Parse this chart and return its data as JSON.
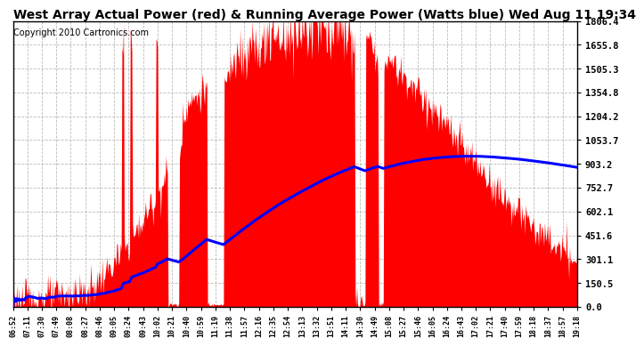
{
  "title": "West Array Actual Power (red) & Running Average Power (Watts blue) Wed Aug 11 19:34",
  "copyright": "Copyright 2010 Cartronics.com",
  "ymax": 1806.4,
  "ymin": 0.0,
  "yticks": [
    0.0,
    150.5,
    301.1,
    451.6,
    602.1,
    752.7,
    903.2,
    1053.7,
    1204.2,
    1354.8,
    1505.3,
    1655.8,
    1806.4
  ],
  "ytick_labels": [
    "0.0",
    "150.5",
    "301.1",
    "451.6",
    "602.1",
    "752.7",
    "903.2",
    "1053.7",
    "1204.2",
    "1354.8",
    "1505.3",
    "1655.8",
    "1806.4"
  ],
  "xtick_labels": [
    "06:52",
    "07:11",
    "07:30",
    "07:49",
    "08:08",
    "08:27",
    "08:46",
    "09:05",
    "09:24",
    "09:43",
    "10:02",
    "10:21",
    "10:40",
    "10:59",
    "11:19",
    "11:38",
    "11:57",
    "12:16",
    "12:35",
    "12:54",
    "13:13",
    "13:32",
    "13:51",
    "14:11",
    "14:30",
    "14:49",
    "15:08",
    "15:27",
    "15:46",
    "16:05",
    "16:24",
    "16:43",
    "17:02",
    "17:21",
    "17:40",
    "17:59",
    "18:18",
    "18:37",
    "18:57",
    "19:18"
  ],
  "bar_color": "#FF0000",
  "line_color": "#0000FF",
  "background_color": "#FFFFFF",
  "grid_color": "#BBBBBB",
  "title_fontsize": 10,
  "copyright_fontsize": 7
}
